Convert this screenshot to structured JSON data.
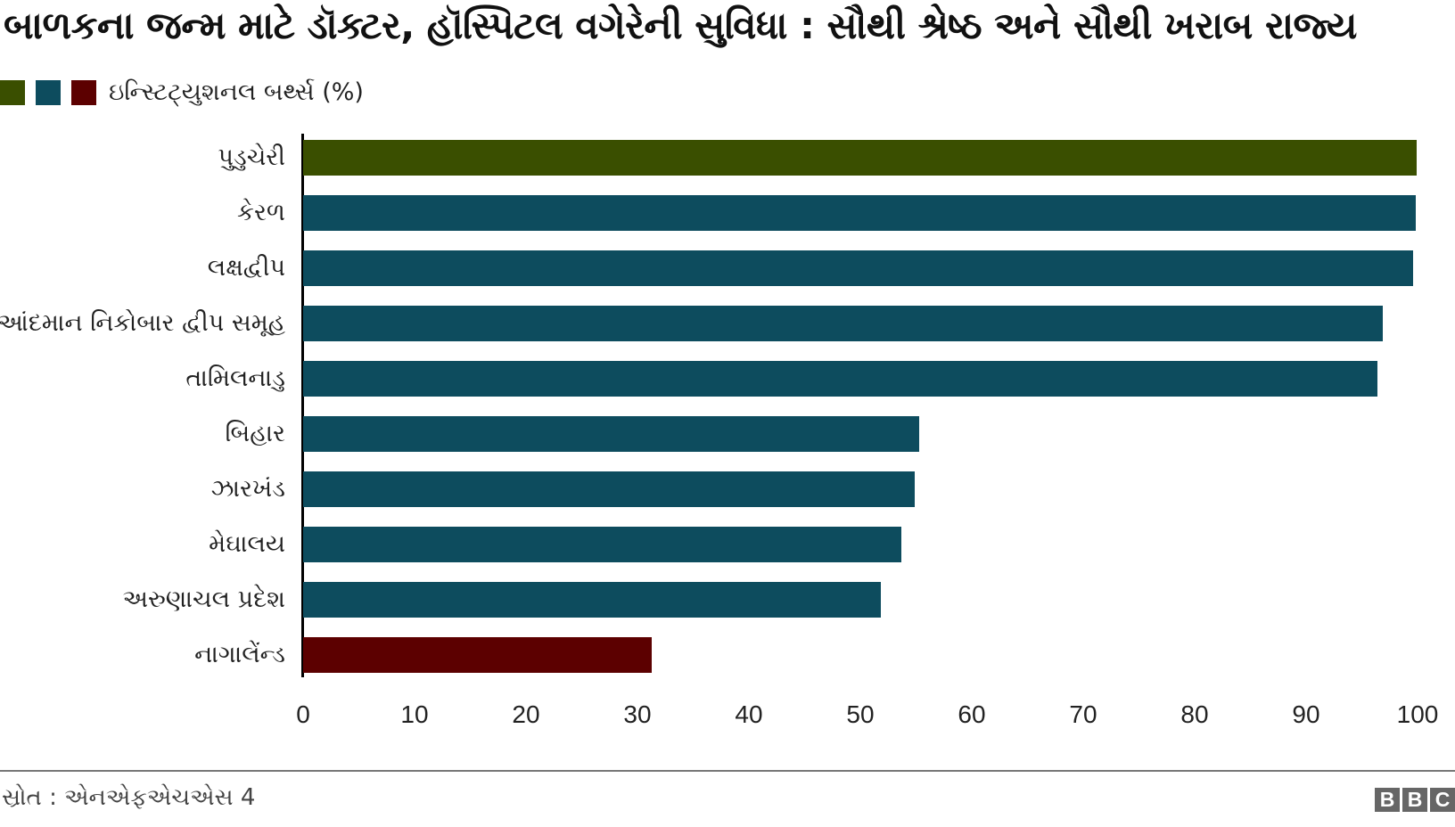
{
  "title": "બાળકના જન્મ માટે ડૉક્ટર, હૉસ્પિટલ વગેરેની સુવિધા : સૌથી શ્રેષ્ઠ અને સૌથી ખરાબ રાજ્ય",
  "legend": {
    "swatches": [
      {
        "name": "best",
        "color": "#3a4f00"
      },
      {
        "name": "middle",
        "color": "#0d4c5e"
      },
      {
        "name": "worst",
        "color": "#5c0000"
      }
    ],
    "label": "ઇન્સ્ટિટ્યુશનલ બર્થ્સ (%)"
  },
  "colors": {
    "best": "#3a4f00",
    "middle": "#0d4c5e",
    "worst": "#5c0000",
    "axis": "#000000",
    "divider": "#777777",
    "logo": "#666666"
  },
  "chart_data": {
    "type": "bar",
    "orientation": "horizontal",
    "title": "બાળકના જન્મ માટે ડૉક્ટર, હૉસ્પિટલ વગેરેની સુવિધા : સૌથી શ્રેષ્ઠ અને સૌથી ખરાબ રાજ્ય",
    "xlabel": "",
    "ylabel": "",
    "xlim": [
      0,
      100
    ],
    "xticks": [
      0,
      10,
      20,
      30,
      40,
      50,
      60,
      70,
      80,
      90,
      100
    ],
    "grid": false,
    "legend": {
      "position": "top-left",
      "entries": [
        "ઇન્સ્ટિટ્યુશનલ બર્થ્સ (%)"
      ]
    },
    "categories": [
      "પુડુચેરી",
      "કેરળ",
      "લક્ષદ્વીપ",
      "આંદમાન નિકોબાર દ્વીપ સમૂહ",
      "તામિલનાડુ",
      "બિહાર",
      "ઝારખંડ",
      "મેઘાલય",
      "અરુણાચલ પ્રદેશ",
      "નાગાલેંન્ડ"
    ],
    "series": [
      {
        "name": "ઇન્સ્ટિટ્યુશનલ બર્થ્સ (%)",
        "values": [
          99.9,
          99.8,
          99.6,
          96.9,
          96.4,
          55.3,
          54.9,
          53.7,
          51.8,
          31.3
        ],
        "colors": [
          "#3a4f00",
          "#0d4c5e",
          "#0d4c5e",
          "#0d4c5e",
          "#0d4c5e",
          "#0d4c5e",
          "#0d4c5e",
          "#0d4c5e",
          "#0d4c5e",
          "#5c0000"
        ]
      }
    ]
  },
  "footer": {
    "source": "સ્રોત : એનએફએચએસ 4",
    "logo_letters": [
      "B",
      "B",
      "C"
    ]
  }
}
